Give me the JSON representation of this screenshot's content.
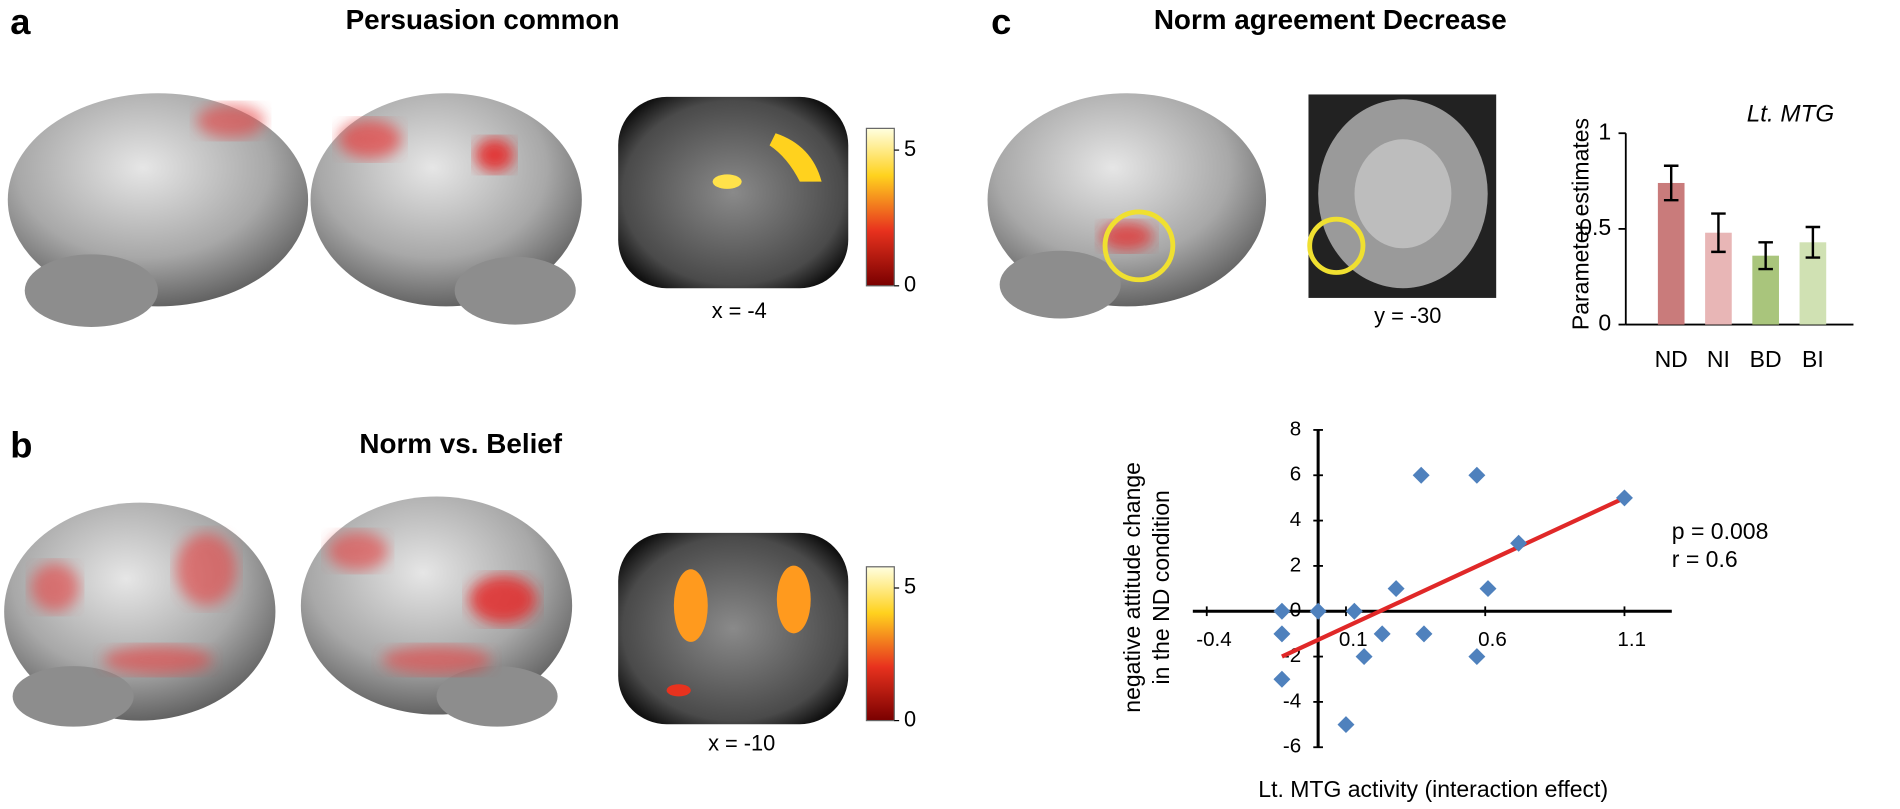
{
  "panels": [
    {
      "label": "a",
      "title": "Persuasion common",
      "slice": "x = -4",
      "colorbar_ticks": [
        0,
        5
      ],
      "colorbar_lim": [
        0,
        5.8
      ]
    },
    {
      "label": "b",
      "title": "Norm vs. Belief",
      "slice": "x = -10",
      "colorbar_ticks": [
        0,
        5
      ],
      "colorbar_lim": [
        0,
        5.8
      ]
    },
    {
      "label": "c",
      "title": "Norm agreement Decrease",
      "slice": "y = -30"
    }
  ],
  "chart_data": [
    {
      "type": "bar",
      "title": "Lt. MTG",
      "ylabel": "Parameter estimates",
      "categories": [
        "ND",
        "NI",
        "BD",
        "BI"
      ],
      "values": [
        0.74,
        0.48,
        0.36,
        0.43
      ],
      "errors": [
        0.09,
        0.1,
        0.07,
        0.08
      ],
      "colors": [
        "#c97b7b",
        "#e8b6b6",
        "#a9c57c",
        "#d0e1b3"
      ],
      "error_color": "#000000",
      "ylim": [
        0,
        1
      ],
      "yticks": [
        0,
        0.5,
        1
      ]
    },
    {
      "type": "scatter",
      "xlabel": "Lt. MTG activity (interaction effect)",
      "ylabel": [
        "negative attitude change",
        "in the ND condition"
      ],
      "x": [
        -0.13,
        0,
        -0.13,
        -0.13,
        0.13,
        0.1,
        0.165,
        0.23,
        0.28,
        0.37,
        0.38,
        0.57,
        0.57,
        0.61,
        0.72,
        1.1
      ],
      "y": [
        0,
        0,
        -1,
        -3,
        0,
        -5,
        -2,
        -1,
        1,
        6,
        -1,
        6,
        -2,
        1,
        3,
        5
      ],
      "color": "#4f81bd",
      "fit": {
        "x": [
          -0.13,
          1.1
        ],
        "y": [
          -2,
          5
        ],
        "color": "#e02828"
      },
      "annotations": [
        "p = 0.008",
        "r = 0.6"
      ],
      "annotation_color": "#e02828",
      "xlim": [
        -0.45,
        1.27
      ],
      "ylim": [
        -6,
        8
      ],
      "xticks": [
        -0.4,
        0.1,
        0.6,
        1.1
      ],
      "yticks": [
        -6,
        -4,
        -2,
        0,
        2,
        4,
        6,
        8
      ]
    }
  ]
}
